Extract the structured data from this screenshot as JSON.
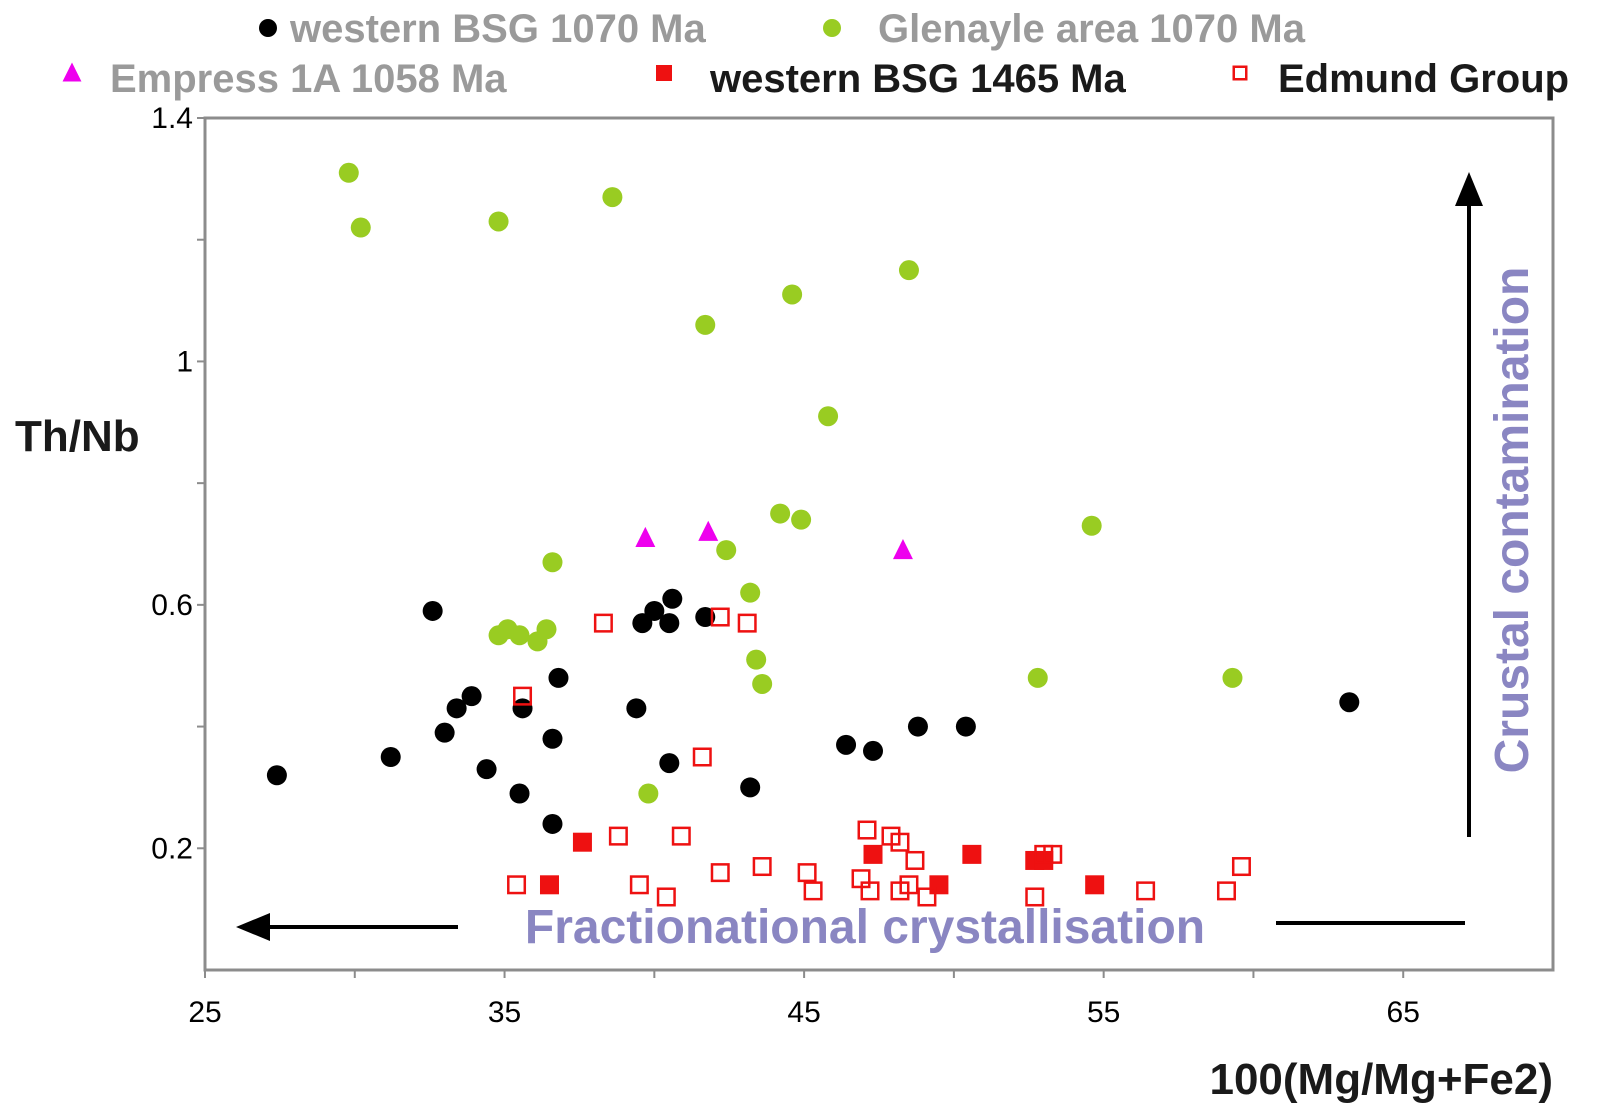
{
  "chart_data": {
    "type": "scatter",
    "title": "",
    "xlabel": "100(Mg/Mg+Fe2)",
    "ylabel": "Th/Nb",
    "xlim": [
      25,
      70
    ],
    "ylim": [
      0,
      1.4
    ],
    "x_ticks": [
      "25",
      "35",
      "45",
      "55",
      "65"
    ],
    "y_ticks": [
      "0.2",
      "0.6",
      "1",
      "1.4"
    ],
    "grid": false,
    "legend_position": "top",
    "annotations": {
      "crustal": "Crustal contamination",
      "fractional": "Fractionational crystallisation"
    },
    "series": [
      {
        "name": "western BSG 1070 Ma",
        "marker": "circle",
        "color": "#000000",
        "legend_text_color": "#9a9a9a",
        "points": [
          [
            27.4,
            0.32
          ],
          [
            31.2,
            0.35
          ],
          [
            32.6,
            0.59
          ],
          [
            33.0,
            0.39
          ],
          [
            33.4,
            0.43
          ],
          [
            33.9,
            0.45
          ],
          [
            34.4,
            0.33
          ],
          [
            35.5,
            0.29
          ],
          [
            35.6,
            0.43
          ],
          [
            36.6,
            0.38
          ],
          [
            36.8,
            0.48
          ],
          [
            36.6,
            0.24
          ],
          [
            39.4,
            0.43
          ],
          [
            39.6,
            0.57
          ],
          [
            40.0,
            0.59
          ],
          [
            40.5,
            0.57
          ],
          [
            40.6,
            0.61
          ],
          [
            40.5,
            0.34
          ],
          [
            41.7,
            0.58
          ],
          [
            43.2,
            0.3
          ],
          [
            46.4,
            0.37
          ],
          [
            47.3,
            0.36
          ],
          [
            48.8,
            0.4
          ],
          [
            50.4,
            0.4
          ],
          [
            63.2,
            0.44
          ]
        ]
      },
      {
        "name": "Glenayle area 1070 Ma",
        "marker": "circle",
        "color": "#99cc22",
        "legend_text_color": "#9a9a9a",
        "points": [
          [
            29.8,
            1.31
          ],
          [
            30.2,
            1.22
          ],
          [
            34.8,
            1.23
          ],
          [
            34.8,
            0.55
          ],
          [
            35.1,
            0.56
          ],
          [
            35.5,
            0.55
          ],
          [
            36.1,
            0.54
          ],
          [
            36.4,
            0.56
          ],
          [
            36.6,
            0.67
          ],
          [
            38.6,
            1.27
          ],
          [
            39.8,
            0.29
          ],
          [
            41.7,
            1.06
          ],
          [
            42.4,
            0.69
          ],
          [
            43.2,
            0.62
          ],
          [
            43.4,
            0.51
          ],
          [
            43.6,
            0.47
          ],
          [
            44.2,
            0.75
          ],
          [
            44.6,
            1.11
          ],
          [
            44.9,
            0.74
          ],
          [
            45.8,
            0.91
          ],
          [
            48.5,
            1.15
          ],
          [
            52.8,
            0.48
          ],
          [
            54.6,
            0.73
          ],
          [
            59.3,
            0.48
          ]
        ]
      },
      {
        "name": "Empress 1A 1058 Ma",
        "marker": "triangle",
        "color": "#ee00ee",
        "legend_text_color": "#9a9a9a",
        "points": [
          [
            39.7,
            0.71
          ],
          [
            41.8,
            0.72
          ],
          [
            48.3,
            0.69
          ]
        ]
      },
      {
        "name": "western BSG 1465 Ma",
        "marker": "square-filled",
        "color": "#ee1111",
        "legend_text_color": "#1a1a1a",
        "points": [
          [
            36.5,
            0.14
          ],
          [
            37.6,
            0.21
          ],
          [
            47.3,
            0.19
          ],
          [
            49.5,
            0.14
          ],
          [
            50.6,
            0.19
          ],
          [
            52.7,
            0.18
          ],
          [
            53.0,
            0.18
          ],
          [
            54.7,
            0.14
          ]
        ]
      },
      {
        "name": "Edmund Group",
        "marker": "square-open",
        "color": "#ee1111",
        "legend_text_color": "#1a1a1a",
        "points": [
          [
            35.4,
            0.14
          ],
          [
            35.6,
            0.45
          ],
          [
            38.3,
            0.57
          ],
          [
            38.8,
            0.22
          ],
          [
            39.5,
            0.14
          ],
          [
            40.4,
            0.12
          ],
          [
            40.9,
            0.22
          ],
          [
            41.6,
            0.35
          ],
          [
            42.2,
            0.58
          ],
          [
            42.2,
            0.16
          ],
          [
            43.1,
            0.57
          ],
          [
            43.6,
            0.17
          ],
          [
            45.1,
            0.16
          ],
          [
            45.3,
            0.13
          ],
          [
            46.9,
            0.15
          ],
          [
            47.1,
            0.23
          ],
          [
            47.2,
            0.13
          ],
          [
            47.9,
            0.22
          ],
          [
            48.2,
            0.21
          ],
          [
            48.2,
            0.13
          ],
          [
            48.5,
            0.14
          ],
          [
            48.7,
            0.18
          ],
          [
            49.1,
            0.12
          ],
          [
            52.7,
            0.12
          ],
          [
            53.0,
            0.19
          ],
          [
            53.3,
            0.19
          ],
          [
            56.4,
            0.13
          ],
          [
            59.1,
            0.13
          ],
          [
            59.6,
            0.17
          ]
        ]
      }
    ]
  }
}
